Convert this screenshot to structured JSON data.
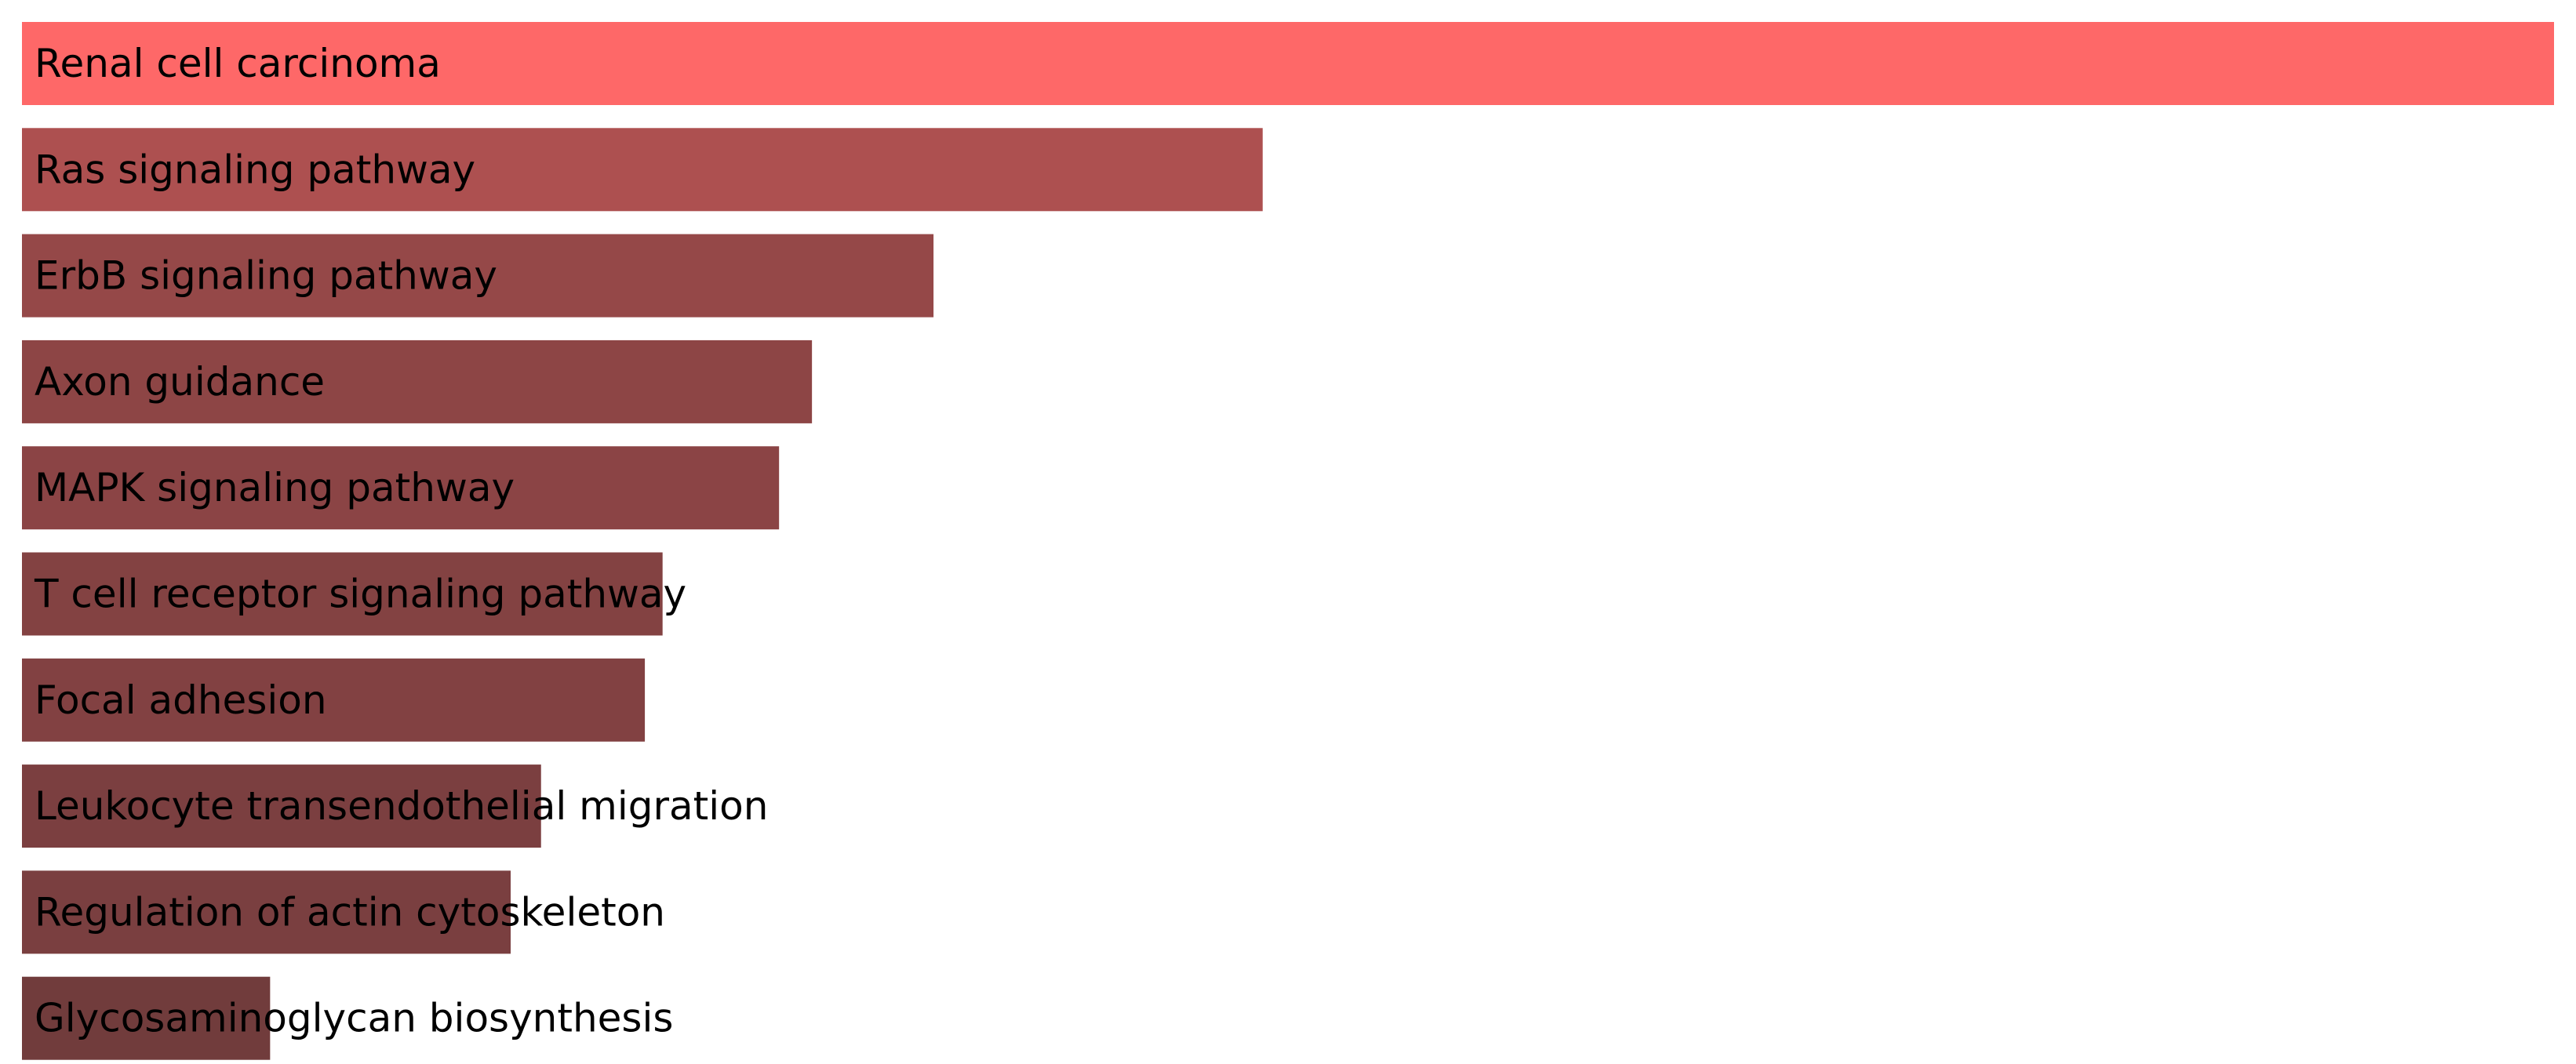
{
  "chart_data": {
    "type": "bar",
    "orientation": "horizontal",
    "categories": [
      "Renal cell carcinoma",
      "Ras signaling pathway",
      "ErbB signaling pathway",
      "Axon guidance",
      "MAPK signaling pathway",
      "T cell receptor signaling pathway",
      "Focal adhesion",
      "Leukocyte transendothelial migration",
      "Regulation of actin cytoskeleton",
      "Glycosaminoglycan biosynthesis"
    ],
    "values": [
      1.0,
      0.49,
      0.36,
      0.312,
      0.299,
      0.253,
      0.246,
      0.205,
      0.193,
      0.098
    ],
    "colors": [
      "#fe6868",
      "#ad5050",
      "#954848",
      "#8d4545",
      "#8b4445",
      "#834242",
      "#824142",
      "#7b3f40",
      "#7a3f40",
      "#713c3c"
    ],
    "xlim": [
      0,
      1
    ],
    "legend": "none",
    "grid": false
  }
}
